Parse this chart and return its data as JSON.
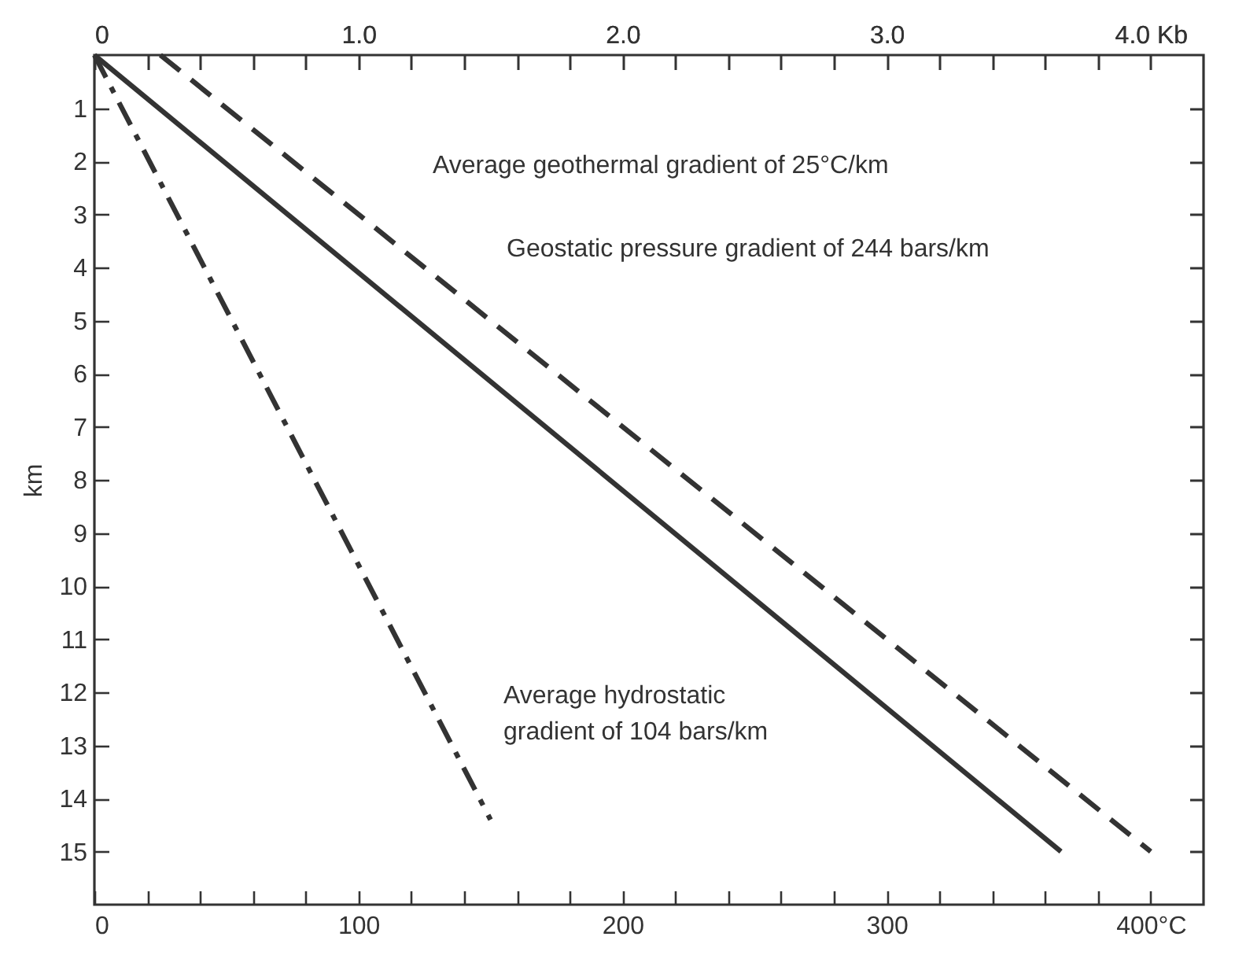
{
  "chart_data": {
    "type": "line",
    "ylabel": "km",
    "xlim": [
      0,
      420
    ],
    "xticks": [
      0,
      {
        "value": 20,
        "label": null
      },
      {
        "value": 40,
        "label": null
      },
      {
        "value": 60,
        "label": null
      },
      {
        "value": 80,
        "label": null
      },
      100,
      {
        "value": 120,
        "label": null
      },
      {
        "value": 140,
        "label": null
      },
      {
        "value": 160,
        "label": null
      },
      {
        "value": 180,
        "label": null
      },
      200,
      {
        "value": 220,
        "label": null
      },
      {
        "value": 240,
        "label": null
      },
      {
        "value": 260,
        "label": null
      },
      {
        "value": 280,
        "label": null
      },
      300,
      {
        "value": 320,
        "label": null
      },
      {
        "value": 340,
        "label": null
      },
      {
        "value": 360,
        "label": null
      },
      {
        "value": 380,
        "label": null
      },
      {
        "value": 400,
        "label": "400°C"
      }
    ],
    "x2lim": [
      0,
      4.2
    ],
    "x2ticks": [
      0,
      {
        "value": 0.2,
        "label": null
      },
      {
        "value": 0.4,
        "label": null
      },
      {
        "value": 0.6,
        "label": null
      },
      {
        "value": 0.8,
        "label": null
      },
      {
        "value": 1,
        "label": "1.0"
      },
      {
        "value": 1.2,
        "label": null
      },
      {
        "value": 1.4,
        "label": null
      },
      {
        "value": 1.6,
        "label": null
      },
      {
        "value": 1.8,
        "label": null
      },
      {
        "value": 2,
        "label": "2.0"
      },
      {
        "value": 2.2,
        "label": null
      },
      {
        "value": 2.4,
        "label": null
      },
      {
        "value": 2.6,
        "label": null
      },
      {
        "value": 2.8,
        "label": null
      },
      {
        "value": 3,
        "label": "3.0"
      },
      {
        "value": 3.2,
        "label": null
      },
      {
        "value": 3.4,
        "label": null
      },
      {
        "value": 3.6,
        "label": null
      },
      {
        "value": 3.8,
        "label": null
      },
      {
        "value": 4,
        "label": "4.0 Kb"
      }
    ],
    "ylim": [
      16,
      0
    ],
    "yticks": [
      1,
      2,
      3,
      4,
      5,
      6,
      7,
      8,
      9,
      10,
      11,
      12,
      13,
      14,
      15
    ],
    "grid": false,
    "marker": "none",
    "series": [
      {
        "color": "#333333",
        "line_style": "dashed",
        "x": [
          25,
          400
        ],
        "values": [
          0,
          15
        ]
      },
      {
        "color": "#333333",
        "line_style": "solid",
        "axis": "x2",
        "x": [
          0,
          3.66
        ],
        "values": [
          0,
          15
        ]
      },
      {
        "color": "#333333",
        "line_style": "dashdot",
        "axis": "x2",
        "x": [
          0,
          1.5
        ],
        "values": [
          0,
          14.4
        ]
      }
    ],
    "annotations": [
      "Average geothermal gradient of 25°C/km",
      "Geostatic pressure gradient of 244 bars/km",
      "Average hydrostatic\ngradient of 104 bars/km"
    ]
  }
}
